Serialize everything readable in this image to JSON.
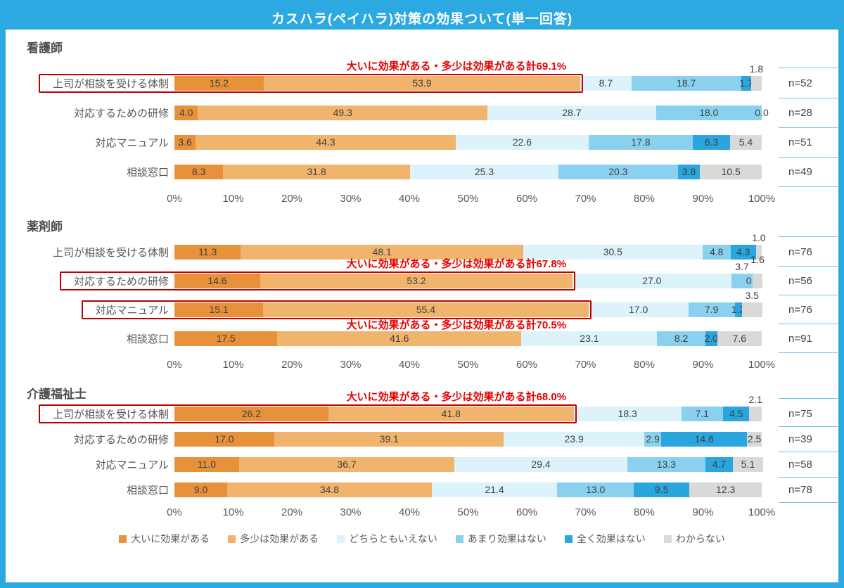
{
  "title": "カスハラ(ペイハラ)対策の効果ついて(単一回答)",
  "colors": {
    "frame": "#2CA9E1",
    "annotation_red": "#E60000",
    "highlight_box_red": "#C00000",
    "bar_label_text": "#3F3F3F",
    "axis_text": "#595959",
    "n_column_line": "#6FC4EA"
  },
  "legend": [
    {
      "label": "大いに効果がある",
      "color": "#E8913B"
    },
    {
      "label": "多少は効果がある",
      "color": "#F0B46C"
    },
    {
      "label": "どちらともいえない",
      "color": "#DDF3FB"
    },
    {
      "label": "あまり効果はない",
      "color": "#8AD1F0"
    },
    {
      "label": "全く効果はない",
      "color": "#2AA5DE"
    },
    {
      "label": "わからない",
      "color": "#D9D9D9"
    }
  ],
  "x_ticks": [
    "0%",
    "10%",
    "20%",
    "30%",
    "40%",
    "50%",
    "60%",
    "70%",
    "80%",
    "90%",
    "100%"
  ],
  "chart_data": [
    {
      "type": "bar",
      "stacked": true,
      "orientation": "horizontal",
      "group": "看護師",
      "unit": "%",
      "xlim": [
        0,
        100
      ],
      "series_order": [
        "大いに効果がある",
        "多少は効果がある",
        "どちらともいえない",
        "あまり効果はない",
        "全く効果はない",
        "わからない"
      ],
      "rows": [
        {
          "category": "上司が相談を受ける体制",
          "values": [
            15.2,
            53.9,
            8.7,
            18.7,
            1.7,
            1.8
          ],
          "label_pos": [
            "in",
            "in",
            "in",
            "in",
            "in",
            "above"
          ],
          "n": "n=52",
          "highlight": true,
          "annotation": "大いに効果がある・多少は効果がある計69.1%",
          "annotation_side": "above"
        },
        {
          "category": "対応するための研修",
          "values": [
            4.0,
            49.3,
            28.7,
            18.0,
            0.0,
            0.0
          ],
          "label_pos": [
            "in",
            "in",
            "in",
            "in",
            "in",
            "none"
          ],
          "n": "n=28"
        },
        {
          "category": "対応マニュアル",
          "values": [
            3.6,
            44.3,
            22.6,
            17.8,
            6.3,
            5.4
          ],
          "n": "n=51"
        },
        {
          "category": "相談窓口",
          "values": [
            8.3,
            31.8,
            25.3,
            20.3,
            3.8,
            10.5
          ],
          "n": "n=49"
        }
      ]
    },
    {
      "type": "bar",
      "stacked": true,
      "orientation": "horizontal",
      "group": "薬剤師",
      "unit": "%",
      "xlim": [
        0,
        100
      ],
      "series_order": [
        "大いに効果がある",
        "多少は効果がある",
        "どちらともいえない",
        "あまり効果はない",
        "全く効果はない",
        "わからない"
      ],
      "rows": [
        {
          "category": "上司が相談を受ける体制",
          "values": [
            11.3,
            48.1,
            30.5,
            4.8,
            4.3,
            1.0
          ],
          "label_pos": [
            "in",
            "in",
            "in",
            "in",
            "in",
            "above"
          ],
          "n": "n=76"
        },
        {
          "category": "対応するための研修",
          "values": [
            14.6,
            53.2,
            27.0,
            3.7,
            0.0,
            1.6
          ],
          "label_pos": [
            "in",
            "in",
            "in",
            "above",
            "in",
            "above2"
          ],
          "n": "n=56",
          "highlight": true,
          "annotation": "大いに効果がある・多少は効果がある計67.8%",
          "annotation_side": "above"
        },
        {
          "category": "対応マニュアル",
          "values": [
            15.1,
            55.4,
            17.0,
            7.9,
            1.2,
            3.5
          ],
          "label_pos": [
            "in",
            "in",
            "in",
            "in",
            "in",
            "above"
          ],
          "n": "n=76",
          "highlight": true,
          "annotation": "大いに効果がある・多少は効果がある計70.5%",
          "annotation_side": "below"
        },
        {
          "category": "相談窓口",
          "values": [
            17.5,
            41.6,
            23.1,
            8.2,
            2.0,
            7.6
          ],
          "n": "n=91"
        }
      ]
    },
    {
      "type": "bar",
      "stacked": true,
      "orientation": "horizontal",
      "group": "介護福祉士",
      "unit": "%",
      "xlim": [
        0,
        100
      ],
      "series_order": [
        "大いに効果がある",
        "多少は効果がある",
        "どちらともいえない",
        "あまり効果はない",
        "全く効果はない",
        "わからない"
      ],
      "rows": [
        {
          "category": "上司が相談を受ける体制",
          "values": [
            26.2,
            41.8,
            18.3,
            7.1,
            4.5,
            2.1
          ],
          "label_pos": [
            "in",
            "in",
            "in",
            "in",
            "in",
            "above"
          ],
          "n": "n=75",
          "highlight": true,
          "annotation": "大いに効果がある・多少は効果がある計68.0%",
          "annotation_side": "above"
        },
        {
          "category": "対応するための研修",
          "values": [
            17.0,
            39.1,
            23.9,
            2.9,
            14.6,
            2.5
          ],
          "n": "n=39"
        },
        {
          "category": "対応マニュアル",
          "values": [
            11.0,
            36.7,
            29.4,
            13.3,
            4.7,
            5.1
          ],
          "n": "n=58"
        },
        {
          "category": "相談窓口",
          "values": [
            9.0,
            34.8,
            21.4,
            13.0,
            9.5,
            12.3
          ],
          "n": "n=78"
        }
      ]
    }
  ]
}
